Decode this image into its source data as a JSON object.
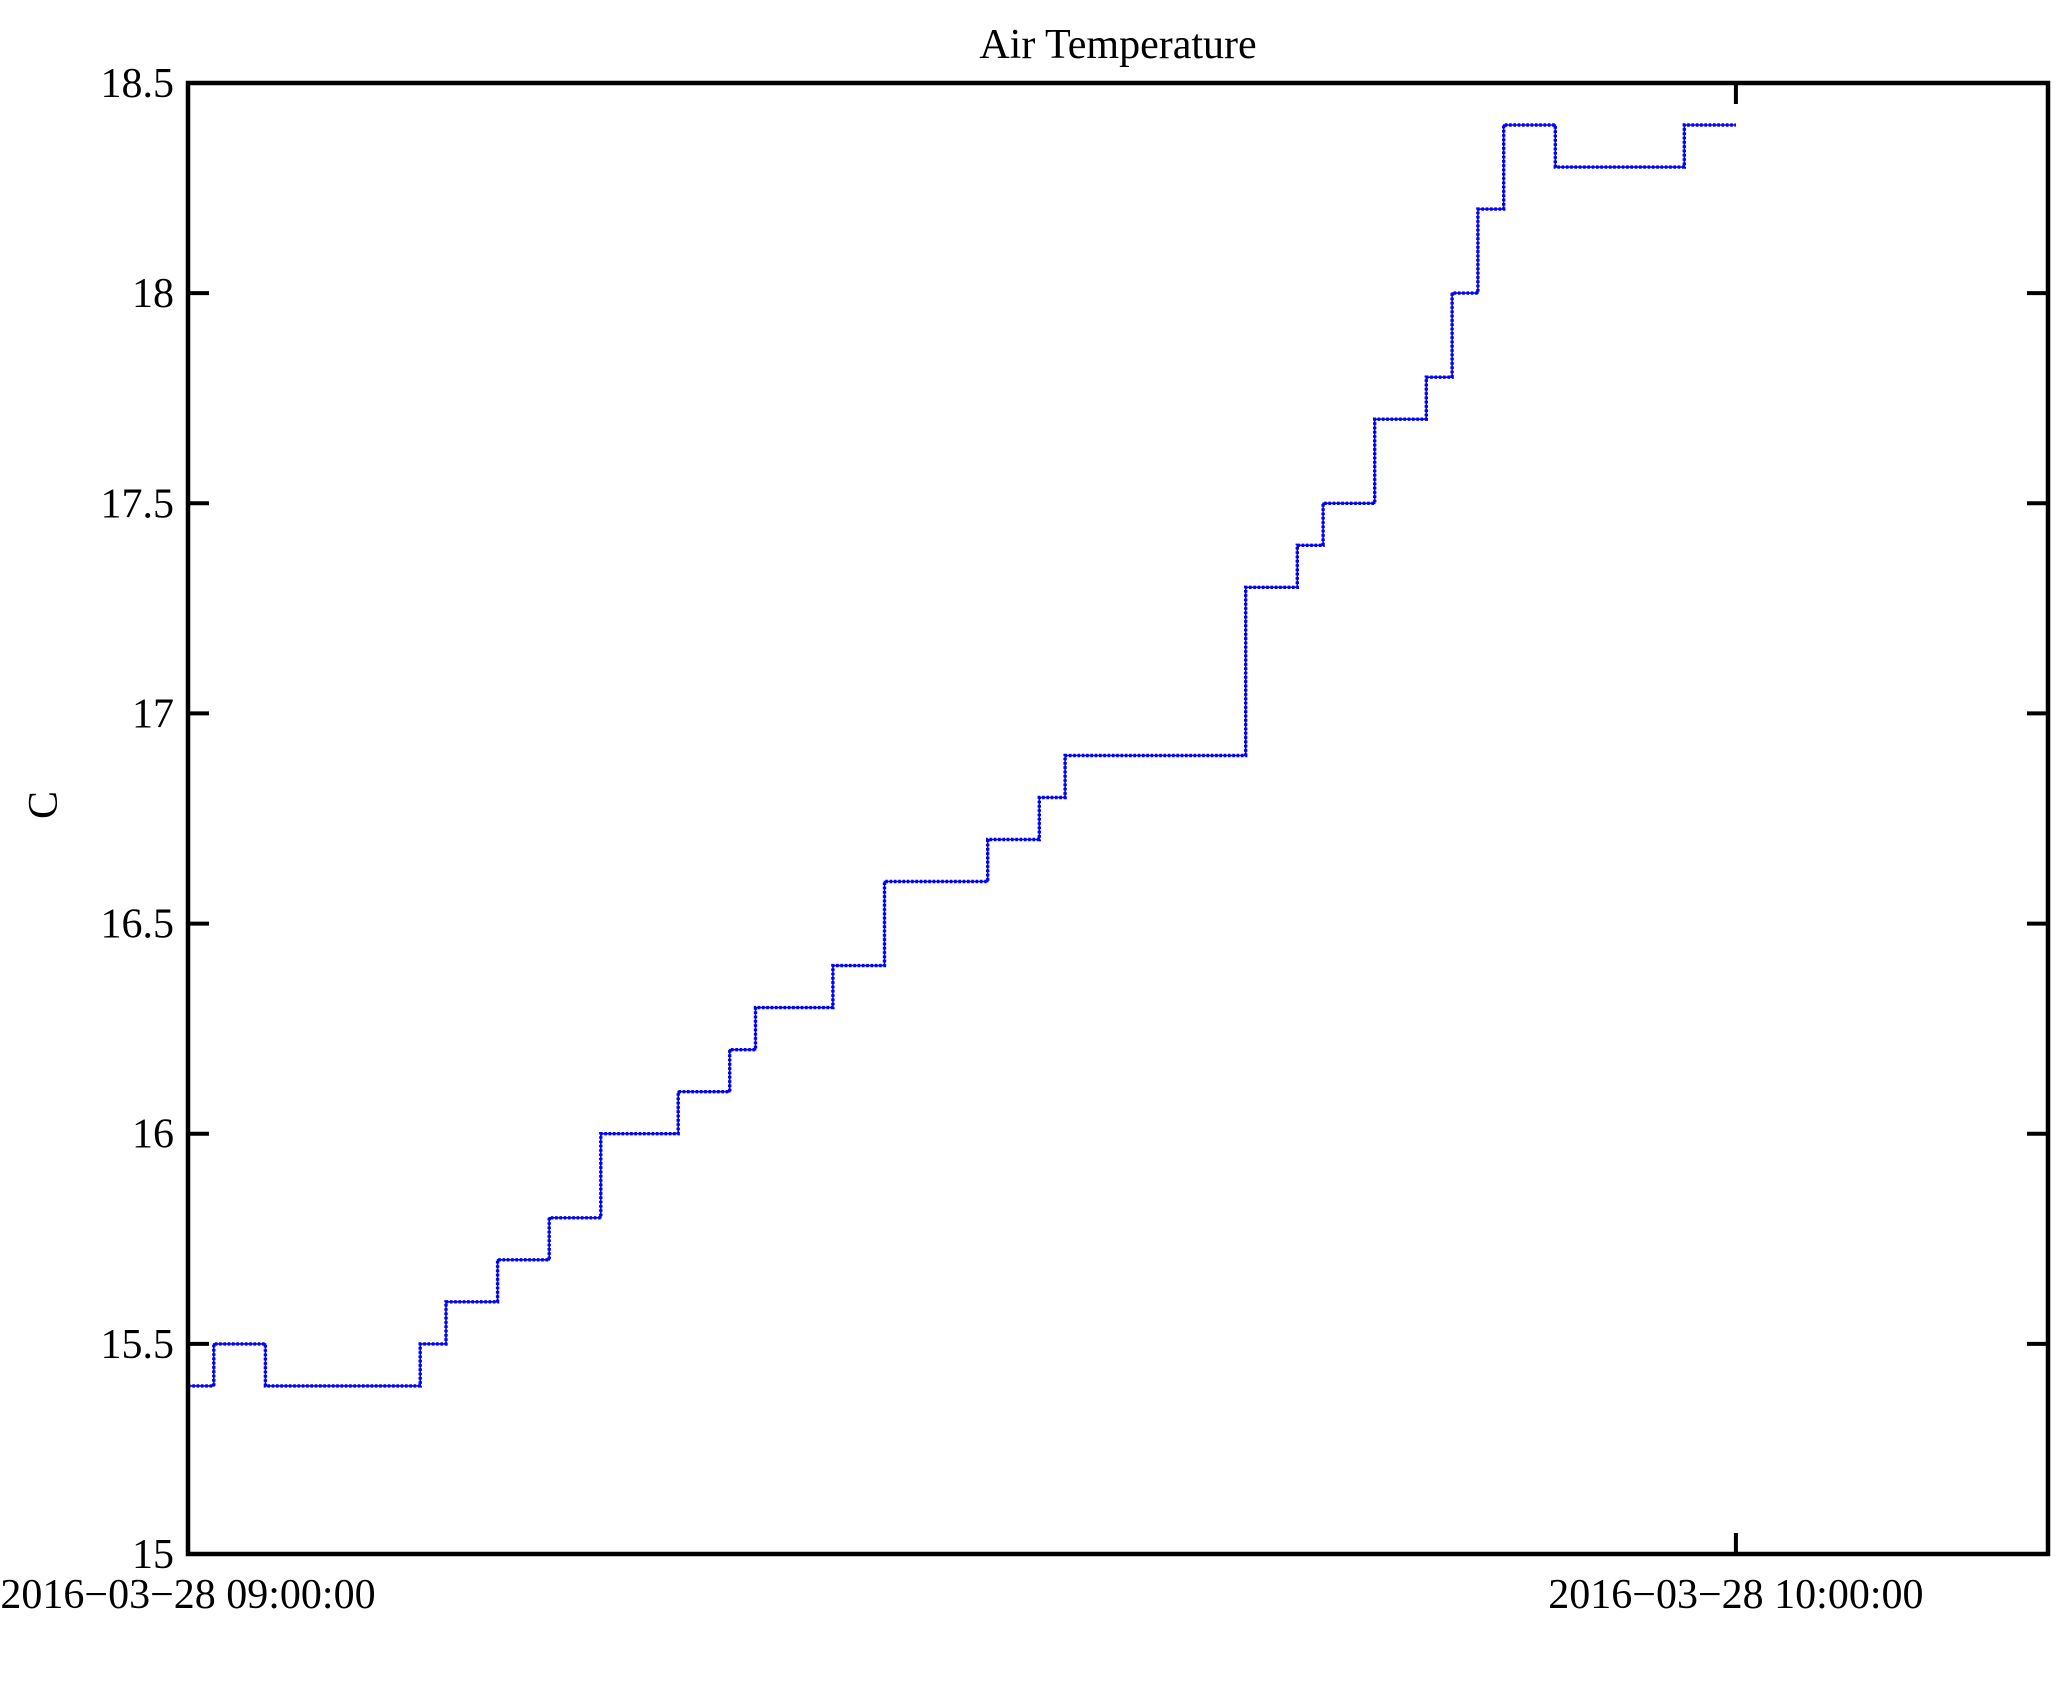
{
  "figure": {
    "background": "#ffffff"
  },
  "chart_data": {
    "type": "line",
    "title": "Air Temperature",
    "xlabel": "",
    "ylabel": "C",
    "grid": false,
    "legend": null,
    "box": true,
    "line_color": "#0000ff",
    "axis_color": "#000000",
    "step_mode": "step-after",
    "ylim": [
      15,
      18.5
    ],
    "yticks": [
      {
        "value": 15,
        "label": "15"
      },
      {
        "value": 15.5,
        "label": "15.5"
      },
      {
        "value": 16,
        "label": "16"
      },
      {
        "value": 16.5,
        "label": "16.5"
      },
      {
        "value": 17,
        "label": "17"
      },
      {
        "value": 17.5,
        "label": "17.5"
      },
      {
        "value": 18,
        "label": "18"
      },
      {
        "value": 18.5,
        "label": "18.5"
      }
    ],
    "x_unit": "minutes after 2016-03-28 09:00:00",
    "xlim_minutes": [
      0,
      72.1
    ],
    "xticks": [
      {
        "minutes": 0,
        "label": "2016−03−28 09:00:00"
      },
      {
        "minutes": 60,
        "label": "2016−03−28 10:00:00"
      }
    ],
    "series": [
      {
        "name": "Air Temperature",
        "color": "#0000ff",
        "point_format": [
          "minutes_after_0900",
          "celsius"
        ],
        "points": [
          [
            0,
            15.4
          ],
          [
            1,
            15.5
          ],
          [
            3,
            15.4
          ],
          [
            9,
            15.5
          ],
          [
            10,
            15.6
          ],
          [
            12,
            15.7
          ],
          [
            14,
            15.8
          ],
          [
            16,
            16.0
          ],
          [
            19,
            16.1
          ],
          [
            21,
            16.2
          ],
          [
            22,
            16.3
          ],
          [
            25,
            16.4
          ],
          [
            27,
            16.6
          ],
          [
            31,
            16.7
          ],
          [
            33,
            16.8
          ],
          [
            34,
            16.9
          ],
          [
            41,
            17.3
          ],
          [
            43,
            17.4
          ],
          [
            44,
            17.5
          ],
          [
            46,
            17.7
          ],
          [
            48,
            17.8
          ],
          [
            49,
            18.0
          ],
          [
            50,
            18.2
          ],
          [
            51,
            18.4
          ],
          [
            53,
            18.3
          ],
          [
            58,
            18.4
          ],
          [
            60,
            18.4
          ]
        ]
      }
    ]
  }
}
